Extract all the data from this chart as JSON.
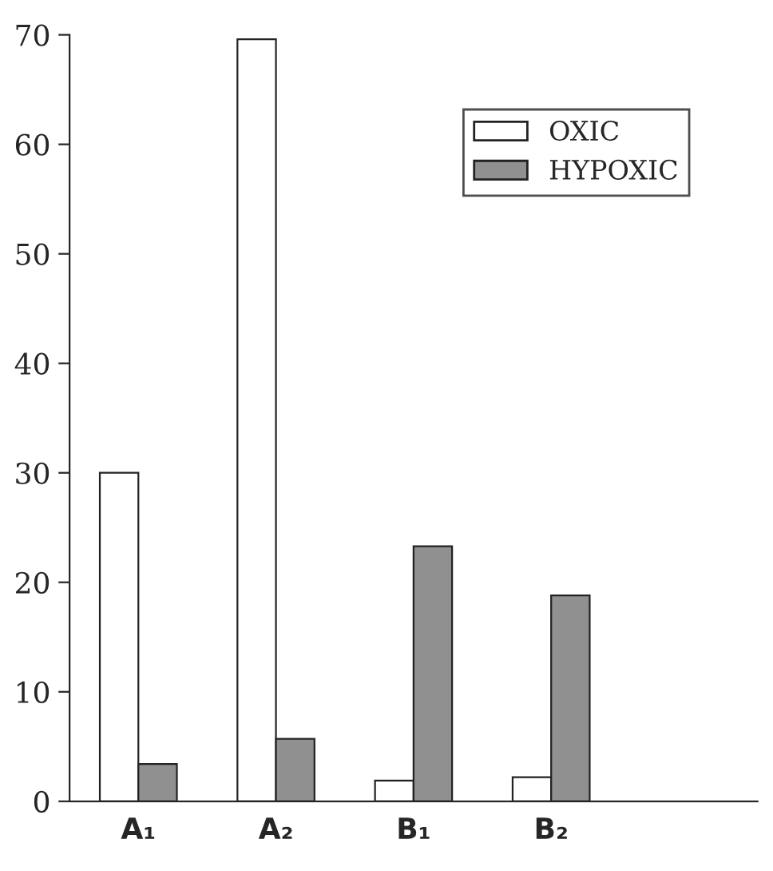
{
  "chart_data": {
    "type": "bar",
    "categories": [
      "A₁",
      "A₂",
      "B₁",
      "B₂",
      null
    ],
    "series": [
      {
        "name": "OXIC",
        "color": "#ffffff",
        "values": [
          30,
          69.6,
          1.9,
          2.2,
          null
        ]
      },
      {
        "name": "HYPOXIC",
        "color": "#909090",
        "values": [
          3.4,
          5.7,
          23.3,
          18.8,
          null
        ]
      }
    ],
    "ylim": [
      0,
      70
    ],
    "yticks": [
      0,
      10,
      20,
      30,
      40,
      50,
      60,
      70
    ],
    "grid": false,
    "legend": "top right"
  }
}
